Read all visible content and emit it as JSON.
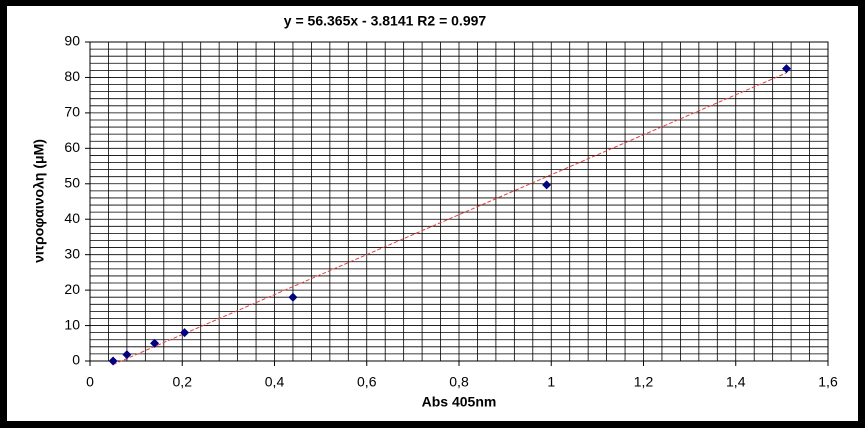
{
  "chart_data": {
    "type": "scatter",
    "title": "y = 56.365x - 3.8141  R2 = 0.997",
    "xlabel": "Abs 405nm",
    "ylabel": "νιτροφαινολη (μM)",
    "series": [
      {
        "color": "#000080",
        "x": [
          0.05,
          0.08,
          0.14,
          0.205,
          0.44,
          0.99,
          1.51
        ],
        "values": [
          0,
          1.8,
          5,
          8,
          18,
          49.7,
          82.5
        ]
      }
    ],
    "trendline": {
      "slope": 56.365,
      "intercept": -3.8141,
      "color": "#e04040"
    },
    "xlim": [
      0,
      1.6
    ],
    "xticks": [
      0,
      {
        "value": 0.2,
        "label": "0,2"
      },
      {
        "value": 0.4,
        "label": "0,4"
      },
      {
        "value": 0.6,
        "label": "0,6"
      },
      {
        "value": 0.8,
        "label": "0,8"
      },
      1,
      {
        "value": 1.2,
        "label": "1,2"
      },
      {
        "value": 1.4,
        "label": "1,4"
      },
      {
        "value": 1.6,
        "label": "1,6"
      }
    ],
    "ylim": [
      0,
      90
    ],
    "yticks": [
      0,
      10,
      20,
      30,
      40,
      50,
      60,
      70,
      80,
      90
    ],
    "xminorticks": [
      0,
      0.04,
      0.08,
      0.12,
      0.16,
      0.2,
      0.24,
      0.28,
      0.32,
      0.36,
      0.4,
      0.44,
      0.48,
      0.52,
      0.56,
      0.6,
      0.64,
      0.68,
      0.72,
      0.76,
      0.8,
      0.84,
      0.88,
      0.92,
      0.96,
      1,
      1.04,
      1.08,
      1.12,
      1.16,
      1.2,
      1.24,
      1.28,
      1.32,
      1.36,
      1.4,
      1.44,
      1.48,
      1.52,
      1.56,
      1.6
    ],
    "yminorticks": [
      0,
      2,
      4,
      6,
      8,
      10,
      12,
      14,
      16,
      18,
      20,
      22,
      24,
      26,
      28,
      30,
      32,
      34,
      36,
      38,
      40,
      42,
      44,
      46,
      48,
      50,
      52,
      54,
      56,
      58,
      60,
      62,
      64,
      66,
      68,
      70,
      72,
      74,
      76,
      78,
      80,
      82,
      84,
      86,
      88,
      90
    ],
    "grid": true
  }
}
